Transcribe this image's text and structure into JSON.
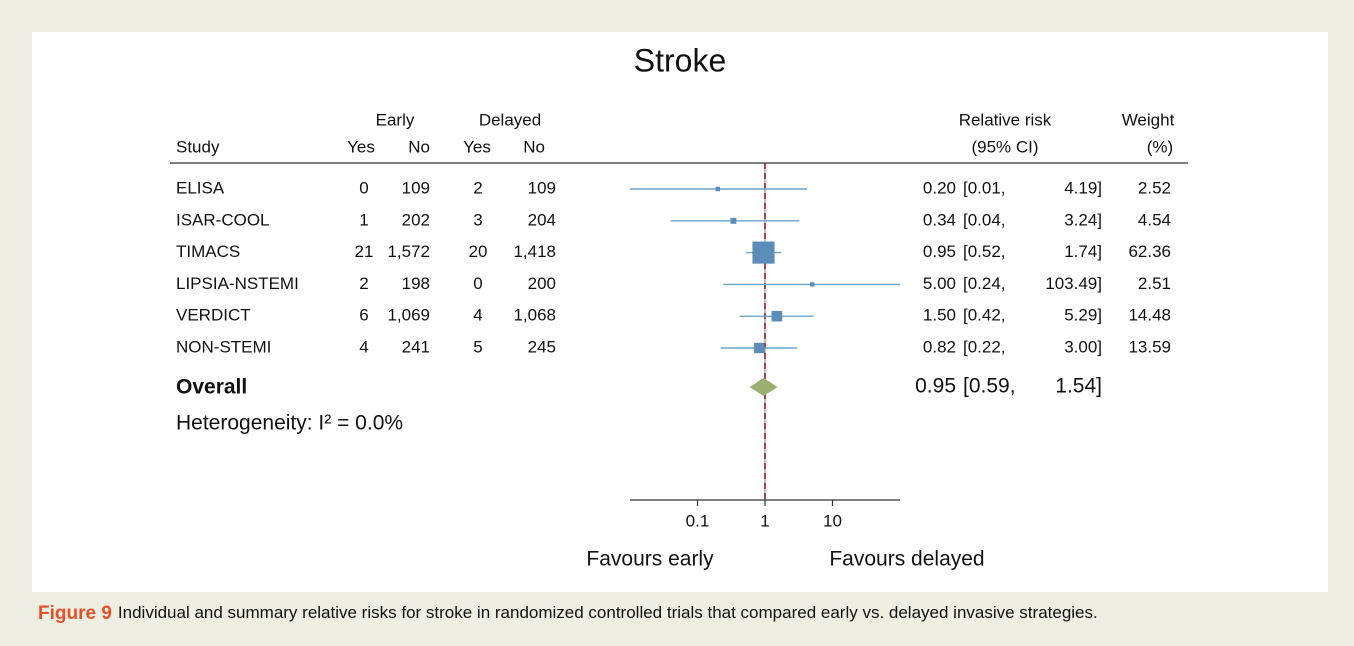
{
  "chart_data": {
    "type": "forest",
    "title": "Stroke",
    "column_headers": {
      "study": "Study",
      "early": "Early",
      "delayed": "Delayed",
      "yes": "Yes",
      "no": "No",
      "rr": "Relative risk",
      "ci": "(95% CI)",
      "weight": "Weight",
      "weight_unit": "(%)"
    },
    "categories": [
      "ELISA",
      "ISAR-COOL",
      "TIMACS",
      "LIPSIA-NSTEMI",
      "VERDICT",
      "NON-STEMI"
    ],
    "early_yes": [
      "0",
      "1",
      "21",
      "2",
      "6",
      "4"
    ],
    "early_no": [
      "109",
      "202",
      "1,572",
      "198",
      "1,069",
      "241"
    ],
    "delayed_yes": [
      "2",
      "3",
      "20",
      "0",
      "4",
      "5"
    ],
    "delayed_no": [
      "109",
      "204",
      "1,418",
      "200",
      "1,068",
      "245"
    ],
    "values": [
      0.2,
      0.34,
      0.95,
      5,
      1.5,
      0.82
    ],
    "value_labels": [
      "0.20",
      "0.34",
      "0.95",
      "5.00",
      "1.50",
      "0.82"
    ],
    "ci_low": [
      0.01,
      0.04,
      0.52,
      0.24,
      0.42,
      0.22
    ],
    "ci_low_labels": [
      "[0.01,",
      "[0.04,",
      "[0.52,",
      "[0.24,",
      "[0.42,",
      "[0.22,"
    ],
    "ci_high": [
      4.19,
      3.24,
      1.74,
      103.49,
      5.29,
      3.0
    ],
    "ci_high_labels": [
      "4.19]",
      "3.24]",
      "1.74]",
      "103.49]",
      "5.29]",
      "3.00]"
    ],
    "weights": [
      2.52,
      4.54,
      62.36,
      2.51,
      14.48,
      13.59
    ],
    "overall": {
      "label": "Overall",
      "value": 0.95,
      "value_label": "0.95",
      "ci_low": 0.59,
      "ci_low_label": "[0.59,",
      "ci_high": 1.54,
      "ci_high_label": "1.54]"
    },
    "heterogeneity": "Heterogeneity: I² = 0.0%",
    "xscale": "log",
    "xlim": [
      0.01,
      100
    ],
    "xticks": [
      0.1,
      1,
      10
    ],
    "reference_line": 1,
    "x_label_left": "Favours early",
    "x_label_right": "Favours delayed",
    "marker_color": "#5b8db8",
    "ci_color": "#6fa3c7",
    "overall_color": "#9caf72",
    "reference_color": "#8b1a2b"
  },
  "caption": {
    "label": "Figure 9",
    "text": "Individual and summary relative risks for stroke in randomized controlled trials that compared early vs. delayed invasive strategies."
  }
}
